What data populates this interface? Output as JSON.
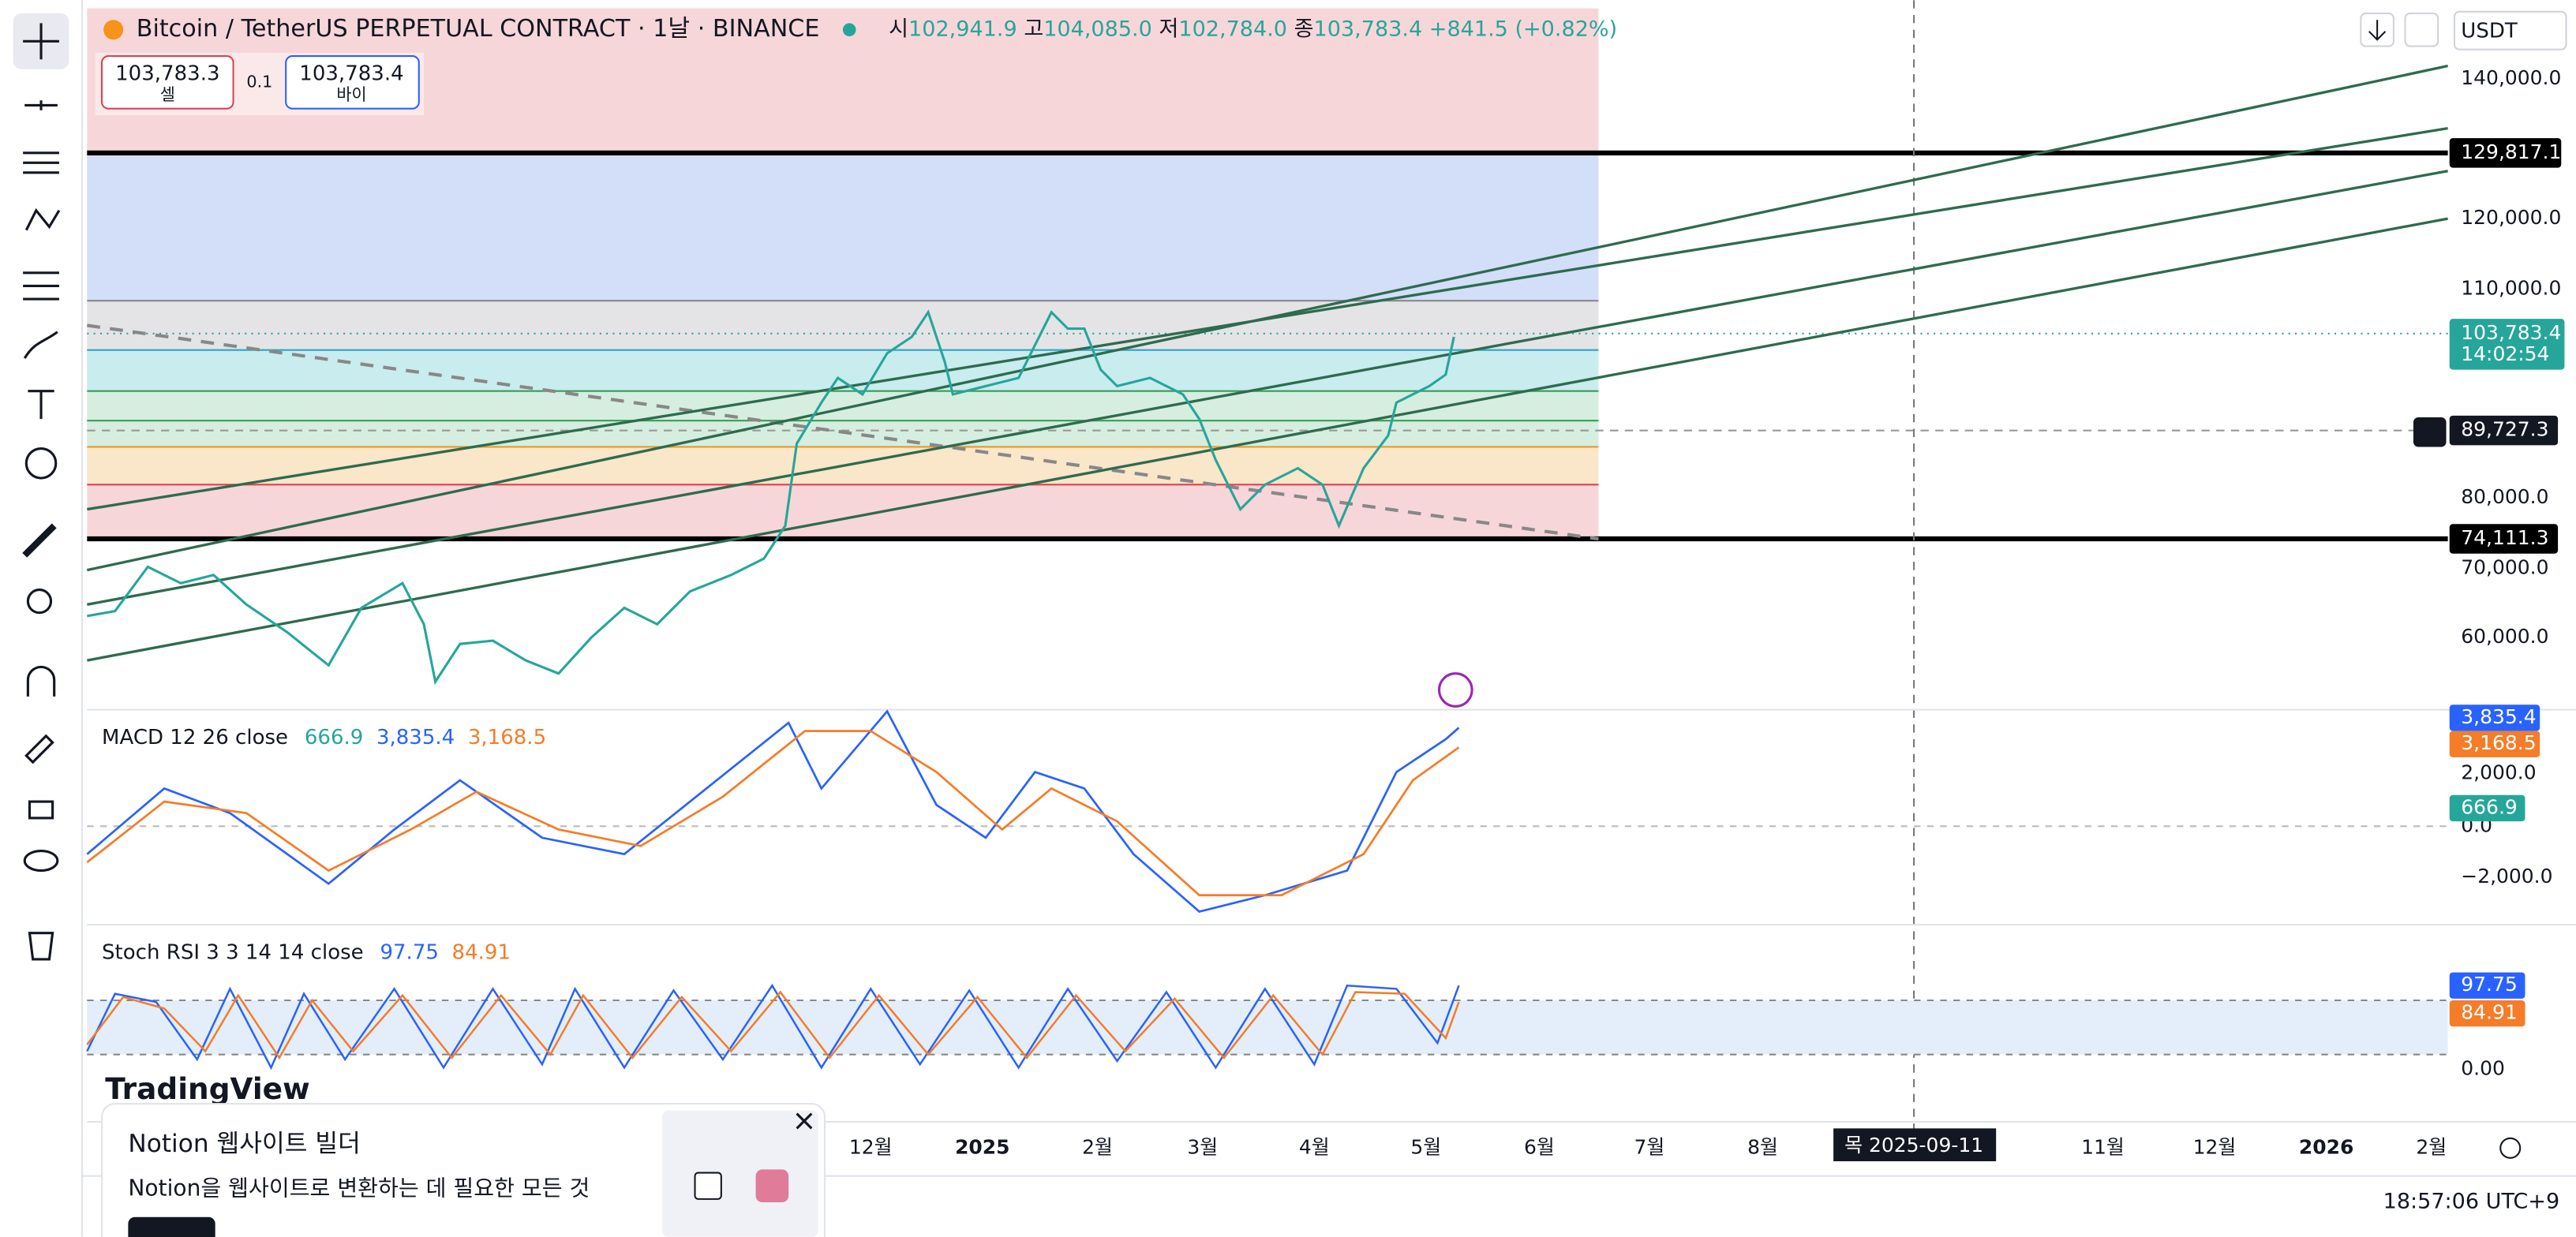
{
  "header": {
    "symbol": "Bitcoin / TetherUS PERPETUAL CONTRACT · 1날 · BINANCE",
    "ohlc": [
      {
        "label": "시",
        "value": "102,941.9"
      },
      {
        "label": "고",
        "value": "104,085.0"
      },
      {
        "label": "저",
        "value": "102,784.0"
      },
      {
        "label": "종",
        "value": "103,783.4"
      }
    ],
    "change": "+841.5 (+0.82%)",
    "currency": "USDT"
  },
  "order": {
    "sell_price": "103,783.3",
    "sell": "셀",
    "spread": "0.1",
    "buy_price": "103,783.4",
    "buy": "바이"
  },
  "price_axis": {
    "ticks": [
      "140,000.0",
      "120,000.0",
      "110,000.0",
      "80,000.0",
      "70,000.0",
      "60,000.0"
    ],
    "levels": [
      "129,817.1",
      "89,727.3",
      "74,111.3"
    ],
    "last_price": "103,783.4",
    "countdown": "14:02:54"
  },
  "macd": {
    "title": "MACD 12 26 close",
    "values": [
      "666.9",
      "3,835.4",
      "3,168.5"
    ],
    "ticks": [
      "2,000.0",
      "0.0",
      "−2,000.0"
    ]
  },
  "stoch_rsi": {
    "title": "Stoch RSI 3 3 14 14 close",
    "values": [
      "97.75",
      "84.91"
    ],
    "ticks": [
      "0.00"
    ]
  },
  "time_axis": {
    "labels": [
      "12월",
      "2025",
      "2월",
      "3월",
      "4월",
      "5월",
      "6월",
      "7월",
      "8월",
      "11월",
      "12월",
      "2026",
      "2월"
    ],
    "crosshair": "목 2025-09-11"
  },
  "clock": "18:57:06 UTC+9",
  "logo": "TradingView",
  "ad": {
    "title": "Notion 웹사이트 빌더",
    "text": "Notion을 웹사이트로 변환하는 데 필요한 모든 것"
  }
}
